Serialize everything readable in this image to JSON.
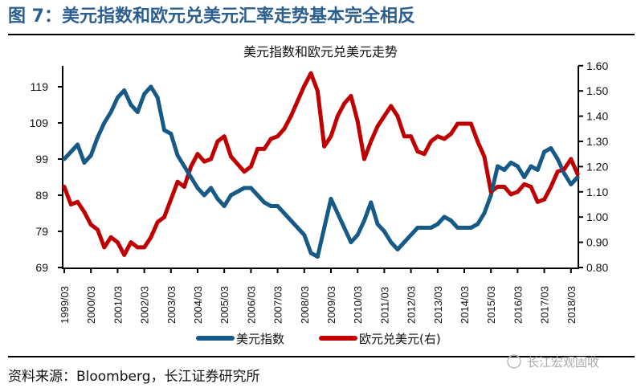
{
  "figure_title": "图 7：美元指数和欧元兑美元汇率走势基本完全相反",
  "source": "资料来源：Bloomberg，长江证券研究所",
  "watermark": "长江宏观固收",
  "colors": {
    "title": "#2b5f8e",
    "usd_index": "#175a87",
    "eurusd": "#c00000"
  },
  "chart_data": {
    "type": "line",
    "title": "美元指数和欧元兑美元走势",
    "y_left": {
      "ylim": [
        69,
        124
      ],
      "ticks": [
        "119",
        "109",
        "99",
        "89",
        "79",
        "69"
      ]
    },
    "y_right": {
      "ylim": [
        0.8,
        1.6
      ],
      "ticks": [
        "1.60",
        "1.50",
        "1.40",
        "1.30",
        "1.20",
        "1.10",
        "1.00",
        "0.90",
        "0.80"
      ]
    },
    "x_ticks": [
      "1999/03",
      "2000/03",
      "2001/03",
      "2002/03",
      "2003/03",
      "2004/03",
      "2005/03",
      "2006/03",
      "2007/03",
      "2008/03",
      "2009/03",
      "2010/03",
      "2011/03",
      "2012/03",
      "2013/03",
      "2014/03",
      "2015/03",
      "2016/03",
      "2017/03",
      "2018/03"
    ],
    "grid": false,
    "legend_position": "bottom",
    "x": [
      "1999/03",
      "1999/06",
      "1999/09",
      "1999/12",
      "2000/03",
      "2000/06",
      "2000/09",
      "2000/12",
      "2001/03",
      "2001/06",
      "2001/09",
      "2001/12",
      "2002/03",
      "2002/06",
      "2002/09",
      "2002/12",
      "2003/03",
      "2003/06",
      "2003/09",
      "2003/12",
      "2004/03",
      "2004/06",
      "2004/09",
      "2004/12",
      "2005/03",
      "2005/06",
      "2005/09",
      "2005/12",
      "2006/03",
      "2006/06",
      "2006/09",
      "2006/12",
      "2007/03",
      "2007/06",
      "2007/09",
      "2007/12",
      "2008/03",
      "2008/06",
      "2008/09",
      "2008/12",
      "2009/03",
      "2009/06",
      "2009/09",
      "2009/12",
      "2010/03",
      "2010/06",
      "2010/09",
      "2010/12",
      "2011/03",
      "2011/06",
      "2011/09",
      "2011/12",
      "2012/03",
      "2012/06",
      "2012/09",
      "2012/12",
      "2013/03",
      "2013/06",
      "2013/09",
      "2013/12",
      "2014/03",
      "2014/06",
      "2014/09",
      "2014/12",
      "2015/03",
      "2015/06",
      "2015/09",
      "2015/12",
      "2016/03",
      "2016/06",
      "2016/09",
      "2016/12",
      "2017/03",
      "2017/06",
      "2017/09",
      "2017/12",
      "2018/03",
      "2018/06"
    ],
    "series": [
      {
        "name": "美元指数",
        "axis": "left",
        "values": [
          99,
          101,
          103,
          98,
          100,
          105,
          109,
          112,
          116,
          118,
          114,
          112,
          117,
          119,
          116,
          107,
          106,
          100,
          97,
          94,
          91,
          89,
          91,
          88,
          86,
          89,
          90,
          91,
          91,
          89,
          87,
          86,
          86,
          84,
          82,
          80,
          78,
          73,
          72,
          80,
          88,
          84,
          80,
          76,
          78,
          82,
          87,
          81,
          79,
          76,
          74,
          76,
          78,
          80,
          80,
          80,
          81,
          83,
          82,
          80,
          80,
          80,
          81,
          84,
          89,
          97,
          96,
          98,
          97,
          94,
          97,
          96,
          101,
          102,
          99,
          95,
          92,
          94
        ]
      },
      {
        "name": "欧元兑美元(右)",
        "axis": "right",
        "values": [
          1.12,
          1.05,
          1.06,
          1.02,
          0.97,
          0.95,
          0.88,
          0.92,
          0.9,
          0.85,
          0.9,
          0.88,
          0.88,
          0.92,
          0.98,
          1.0,
          1.07,
          1.14,
          1.12,
          1.2,
          1.25,
          1.22,
          1.23,
          1.3,
          1.32,
          1.24,
          1.21,
          1.18,
          1.2,
          1.27,
          1.27,
          1.31,
          1.32,
          1.35,
          1.4,
          1.46,
          1.52,
          1.57,
          1.5,
          1.28,
          1.32,
          1.4,
          1.45,
          1.48,
          1.38,
          1.23,
          1.3,
          1.36,
          1.4,
          1.44,
          1.4,
          1.32,
          1.32,
          1.26,
          1.25,
          1.3,
          1.32,
          1.31,
          1.33,
          1.37,
          1.37,
          1.37,
          1.3,
          1.24,
          1.1,
          1.12,
          1.12,
          1.09,
          1.1,
          1.13,
          1.12,
          1.06,
          1.07,
          1.12,
          1.18,
          1.19,
          1.23,
          1.17
        ]
      }
    ]
  }
}
